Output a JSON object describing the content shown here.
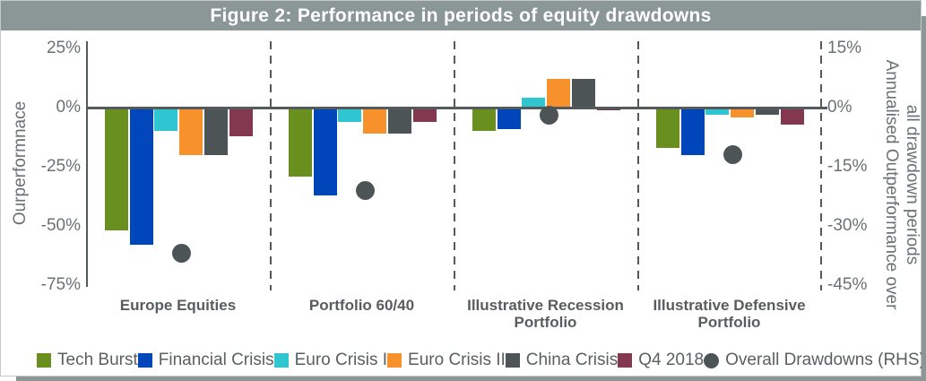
{
  "figure": {
    "title": "Figure 2: Performance in periods of equity drawdowns"
  },
  "left_axis": {
    "title": "Ourperformnace",
    "ticks": [
      "25%",
      "0%",
      "-25%",
      "-50%",
      "-75%"
    ]
  },
  "right_axis": {
    "title_line1": "Annualised Outperformance over",
    "title_line2": "all drawdown periods",
    "ticks": [
      "15%",
      "0%",
      "-15%",
      "-30%",
      "-45%"
    ]
  },
  "chart_data": {
    "type": "bar",
    "categories": [
      "Europe Equities",
      "Portfolio 60/40",
      "Illustrative Recession Portfolio",
      "Illustrative Defensive Portfolio"
    ],
    "series": [
      {
        "name": "Tech Burst",
        "color": "#698f1e",
        "values": [
          -52,
          -29,
          -10,
          -17
        ]
      },
      {
        "name": "Financial Crisis",
        "color": "#0046bb",
        "values": [
          -58,
          -37,
          -9,
          -20
        ]
      },
      {
        "name": "Euro Crisis I",
        "color": "#2fc6d2",
        "values": [
          -10,
          -6,
          4,
          -3
        ]
      },
      {
        "name": "Euro Crisis II",
        "color": "#f6912c",
        "values": [
          -20,
          -11,
          12,
          -4
        ]
      },
      {
        "name": "China Crisis",
        "color": "#4d5456",
        "values": [
          -20,
          -11,
          12,
          -3
        ]
      },
      {
        "name": "Q4 2018",
        "color": "#84384f",
        "values": [
          -12,
          -6,
          -1,
          -7
        ]
      }
    ],
    "scatter_series": {
      "name": "Overall Drawdowns (RHS)",
      "color": "#4d5456",
      "axis": "right",
      "values": [
        -37,
        -21,
        -2,
        -12
      ]
    },
    "left_ylabel": "Ourperformnace",
    "right_ylabel": "Annualised Outperformance over all drawdown periods",
    "left_ylim": [
      -75,
      25
    ],
    "right_ylim": [
      -45,
      15
    ],
    "grid": false,
    "legend_position": "bottom"
  }
}
